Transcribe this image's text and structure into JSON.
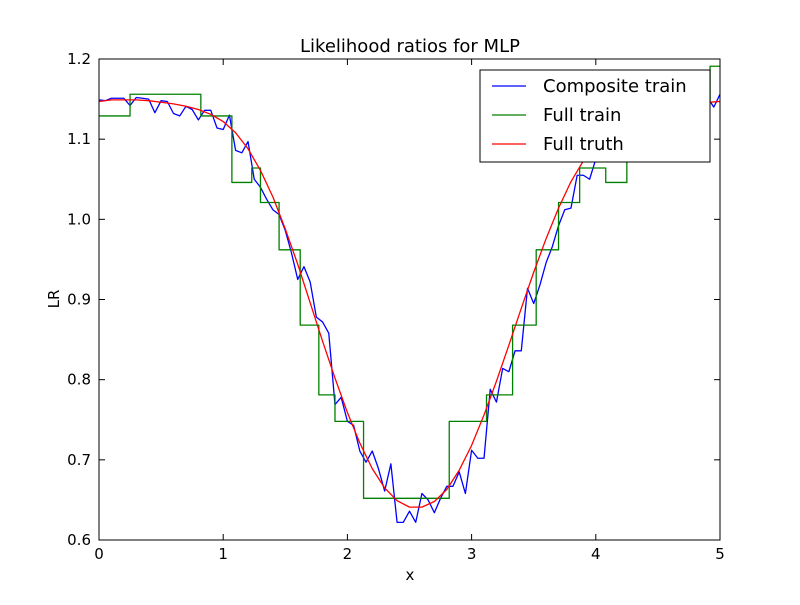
{
  "chart_data": {
    "type": "line",
    "title": "Likelihood ratios for MLP",
    "xlabel": "x",
    "ylabel": "LR",
    "xlim": [
      0,
      5
    ],
    "ylim": [
      0.6,
      1.2
    ],
    "x_ticks": [
      "0",
      "1",
      "2",
      "3",
      "4",
      "5"
    ],
    "y_ticks": [
      "0.6",
      "0.7",
      "0.8",
      "0.9",
      "1.0",
      "1.1",
      "1.2"
    ],
    "grid": false,
    "legend_position": "top-right",
    "series": [
      {
        "name": "Composite train",
        "color": "#0000ff",
        "points": [
          [
            0.0,
            1.149
          ],
          [
            0.05,
            1.148
          ],
          [
            0.1,
            1.151
          ],
          [
            0.15,
            1.151
          ],
          [
            0.2,
            1.151
          ],
          [
            0.25,
            1.142
          ],
          [
            0.3,
            1.152
          ],
          [
            0.35,
            1.151
          ],
          [
            0.4,
            1.15
          ],
          [
            0.45,
            1.133
          ],
          [
            0.5,
            1.148
          ],
          [
            0.55,
            1.147
          ],
          [
            0.6,
            1.132
          ],
          [
            0.65,
            1.129
          ],
          [
            0.7,
            1.141
          ],
          [
            0.75,
            1.137
          ],
          [
            0.8,
            1.124
          ],
          [
            0.85,
            1.136
          ],
          [
            0.9,
            1.136
          ],
          [
            0.95,
            1.114
          ],
          [
            1.0,
            1.112
          ],
          [
            1.05,
            1.13
          ],
          [
            1.1,
            1.086
          ],
          [
            1.15,
            1.083
          ],
          [
            1.2,
            1.097
          ],
          [
            1.25,
            1.05
          ],
          [
            1.3,
            1.04
          ],
          [
            1.35,
            1.025
          ],
          [
            1.4,
            1.012
          ],
          [
            1.45,
            1.006
          ],
          [
            1.5,
            0.986
          ],
          [
            1.55,
            0.958
          ],
          [
            1.6,
            0.925
          ],
          [
            1.65,
            0.941
          ],
          [
            1.7,
            0.922
          ],
          [
            1.75,
            0.878
          ],
          [
            1.8,
            0.872
          ],
          [
            1.85,
            0.858
          ],
          [
            1.9,
            0.769
          ],
          [
            1.95,
            0.778
          ],
          [
            2.0,
            0.748
          ],
          [
            2.05,
            0.743
          ],
          [
            2.1,
            0.711
          ],
          [
            2.15,
            0.697
          ],
          [
            2.2,
            0.711
          ],
          [
            2.25,
            0.689
          ],
          [
            2.3,
            0.661
          ],
          [
            2.35,
            0.695
          ],
          [
            2.4,
            0.622
          ],
          [
            2.45,
            0.622
          ],
          [
            2.5,
            0.636
          ],
          [
            2.55,
            0.622
          ],
          [
            2.6,
            0.658
          ],
          [
            2.65,
            0.65
          ],
          [
            2.7,
            0.634
          ],
          [
            2.75,
            0.652
          ],
          [
            2.8,
            0.667
          ],
          [
            2.85,
            0.667
          ],
          [
            2.9,
            0.685
          ],
          [
            2.95,
            0.658
          ],
          [
            3.0,
            0.712
          ],
          [
            3.05,
            0.702
          ],
          [
            3.1,
            0.702
          ],
          [
            3.15,
            0.788
          ],
          [
            3.2,
            0.772
          ],
          [
            3.25,
            0.814
          ],
          [
            3.3,
            0.81
          ],
          [
            3.35,
            0.836
          ],
          [
            3.4,
            0.836
          ],
          [
            3.45,
            0.914
          ],
          [
            3.5,
            0.895
          ],
          [
            3.55,
            0.918
          ],
          [
            3.6,
            0.946
          ],
          [
            3.65,
            0.966
          ],
          [
            3.7,
            0.992
          ],
          [
            3.75,
            1.012
          ],
          [
            3.8,
            1.014
          ],
          [
            3.85,
            1.055
          ],
          [
            3.9,
            1.055
          ],
          [
            3.95,
            1.05
          ],
          [
            4.0,
            1.075
          ],
          [
            4.05,
            1.095
          ],
          [
            4.1,
            1.11
          ],
          [
            4.15,
            1.122
          ],
          [
            4.2,
            1.13
          ],
          [
            4.25,
            1.135
          ],
          [
            4.3,
            1.138
          ],
          [
            4.35,
            1.141
          ],
          [
            4.4,
            1.143
          ],
          [
            4.45,
            1.145
          ],
          [
            4.5,
            1.146
          ],
          [
            4.55,
            1.147
          ],
          [
            4.6,
            1.148
          ],
          [
            4.65,
            1.148
          ],
          [
            4.7,
            1.149
          ],
          [
            4.75,
            1.149
          ],
          [
            4.8,
            1.149
          ],
          [
            4.85,
            1.146
          ],
          [
            4.9,
            1.152
          ],
          [
            4.95,
            1.14
          ],
          [
            5.0,
            1.156
          ]
        ]
      },
      {
        "name": "Full train",
        "color": "#008000",
        "step": true,
        "points": [
          [
            0.0,
            1.129
          ],
          [
            0.25,
            1.156
          ],
          [
            0.82,
            1.129
          ],
          [
            1.07,
            1.046
          ],
          [
            1.23,
            1.064
          ],
          [
            1.3,
            1.021
          ],
          [
            1.45,
            0.962
          ],
          [
            1.62,
            0.868
          ],
          [
            1.77,
            0.781
          ],
          [
            1.9,
            0.748
          ],
          [
            2.13,
            0.652
          ],
          [
            2.82,
            0.748
          ],
          [
            3.12,
            0.781
          ],
          [
            3.33,
            0.868
          ],
          [
            3.52,
            0.962
          ],
          [
            3.7,
            1.021
          ],
          [
            3.87,
            1.064
          ],
          [
            4.08,
            1.046
          ],
          [
            4.25,
            1.129
          ],
          [
            4.4,
            1.148
          ],
          [
            4.92,
            1.191
          ],
          [
            5.0,
            1.191
          ]
        ]
      },
      {
        "name": "Full truth",
        "color": "#ff0000",
        "points": [
          [
            0.0,
            1.147
          ],
          [
            0.1,
            1.149
          ],
          [
            0.2,
            1.149
          ],
          [
            0.3,
            1.149
          ],
          [
            0.4,
            1.148
          ],
          [
            0.5,
            1.146
          ],
          [
            0.6,
            1.144
          ],
          [
            0.7,
            1.141
          ],
          [
            0.8,
            1.137
          ],
          [
            0.9,
            1.131
          ],
          [
            1.0,
            1.122
          ],
          [
            1.1,
            1.108
          ],
          [
            1.2,
            1.088
          ],
          [
            1.3,
            1.061
          ],
          [
            1.4,
            1.028
          ],
          [
            1.5,
            0.988
          ],
          [
            1.6,
            0.944
          ],
          [
            1.7,
            0.896
          ],
          [
            1.8,
            0.848
          ],
          [
            1.9,
            0.802
          ],
          [
            2.0,
            0.759
          ],
          [
            2.1,
            0.721
          ],
          [
            2.2,
            0.689
          ],
          [
            2.3,
            0.665
          ],
          [
            2.4,
            0.649
          ],
          [
            2.5,
            0.641
          ],
          [
            2.6,
            0.641
          ],
          [
            2.7,
            0.648
          ],
          [
            2.8,
            0.663
          ],
          [
            2.9,
            0.687
          ],
          [
            3.0,
            0.718
          ],
          [
            3.1,
            0.756
          ],
          [
            3.2,
            0.798
          ],
          [
            3.3,
            0.843
          ],
          [
            3.4,
            0.889
          ],
          [
            3.5,
            0.934
          ],
          [
            3.6,
            0.976
          ],
          [
            3.7,
            1.014
          ],
          [
            3.8,
            1.047
          ],
          [
            3.9,
            1.073
          ],
          [
            4.0,
            1.094
          ],
          [
            4.1,
            1.109
          ],
          [
            4.2,
            1.12
          ],
          [
            4.3,
            1.128
          ],
          [
            4.4,
            1.134
          ],
          [
            4.5,
            1.138
          ],
          [
            4.6,
            1.141
          ],
          [
            4.7,
            1.143
          ],
          [
            4.8,
            1.145
          ],
          [
            4.9,
            1.146
          ],
          [
            5.0,
            1.147
          ]
        ]
      }
    ]
  }
}
